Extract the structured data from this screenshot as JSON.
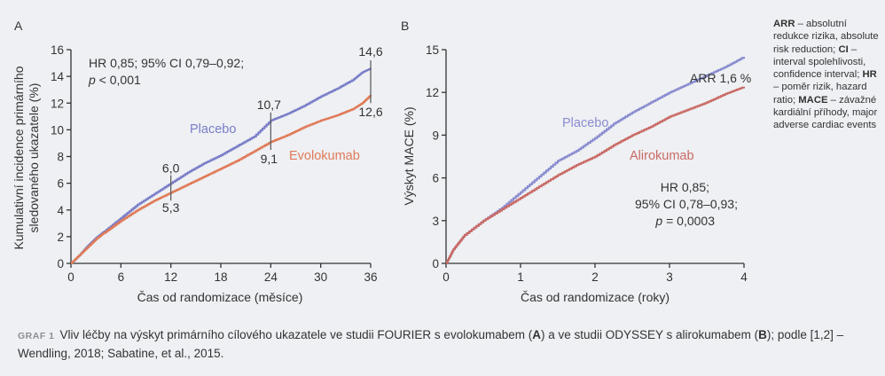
{
  "chart_data": [
    {
      "type": "line",
      "panel": "A",
      "ylabel_line1": "Kumulativní incidence primárního",
      "ylabel_line2": "sledovaného ukazatele (%)",
      "xlabel": "Čas od randomizace (měsíce)",
      "xlim": [
        0,
        36
      ],
      "ylim": [
        0,
        16
      ],
      "xticks": [
        0,
        6,
        12,
        18,
        24,
        30,
        36
      ],
      "yticks": [
        0,
        2,
        4,
        6,
        8,
        10,
        12,
        14,
        16
      ],
      "series": [
        {
          "name": "Placebo",
          "color": "#7a7ec8",
          "x": [
            0,
            1,
            2,
            3,
            4,
            6,
            8,
            10,
            12,
            14,
            16,
            18,
            20,
            22,
            24,
            26,
            28,
            30,
            32,
            34,
            35,
            36
          ],
          "y": [
            0,
            0.6,
            1.3,
            1.9,
            2.4,
            3.4,
            4.4,
            5.2,
            6.0,
            6.8,
            7.5,
            8.1,
            8.8,
            9.5,
            10.7,
            11.2,
            11.8,
            12.5,
            13.1,
            13.8,
            14.3,
            14.6
          ]
        },
        {
          "name": "Evolokumab",
          "color": "#e07a58",
          "x": [
            0,
            1,
            2,
            3,
            4,
            6,
            8,
            10,
            12,
            14,
            16,
            18,
            20,
            22,
            24,
            26,
            28,
            30,
            32,
            34,
            35,
            36
          ],
          "y": [
            0,
            0.6,
            1.2,
            1.8,
            2.3,
            3.2,
            4.0,
            4.7,
            5.3,
            5.9,
            6.5,
            7.1,
            7.7,
            8.4,
            9.1,
            9.6,
            10.2,
            10.7,
            11.1,
            11.6,
            12.0,
            12.6
          ]
        }
      ],
      "point_labels": [
        {
          "x": 12,
          "y": 6.0,
          "text": "6,0"
        },
        {
          "x": 12,
          "y": 5.3,
          "text": "5,3"
        },
        {
          "x": 24,
          "y": 10.7,
          "text": "10,7"
        },
        {
          "x": 24,
          "y": 9.1,
          "text": "9,1"
        },
        {
          "x": 36,
          "y": 14.6,
          "text": "14,6"
        },
        {
          "x": 36,
          "y": 12.6,
          "text": "12,6"
        }
      ],
      "annotation_line1": "HR 0,85; 95% CI 0,79–0,92;",
      "annotation_p_italic": "p",
      "annotation_line2_rest": " < 0,001"
    },
    {
      "type": "line",
      "panel": "B",
      "ylabel": "Výskyt MACE (%)",
      "xlabel": "Čas od randomizace (roky)",
      "xlim": [
        0,
        4
      ],
      "ylim": [
        0,
        15
      ],
      "xticks": [
        0,
        1,
        2,
        3,
        4
      ],
      "yticks": [
        0,
        3,
        6,
        9,
        12,
        15
      ],
      "series": [
        {
          "name": "Placebo",
          "color": "#8a8cd0",
          "x": [
            0,
            0.1,
            0.25,
            0.5,
            0.75,
            1.0,
            1.25,
            1.5,
            1.75,
            2.0,
            2.25,
            2.5,
            2.75,
            3.0,
            3.25,
            3.5,
            3.75,
            4.0
          ],
          "y": [
            0,
            1.0,
            2.0,
            3.0,
            3.9,
            5.0,
            6.1,
            7.2,
            7.9,
            8.8,
            9.8,
            10.6,
            11.3,
            12.0,
            12.6,
            13.2,
            13.8,
            14.5
          ]
        },
        {
          "name": "Alirokumab",
          "color": "#c96a66",
          "x": [
            0,
            0.1,
            0.25,
            0.5,
            0.75,
            1.0,
            1.25,
            1.5,
            1.75,
            2.0,
            2.25,
            2.5,
            2.75,
            3.0,
            3.25,
            3.5,
            3.75,
            4.0
          ],
          "y": [
            0,
            1.0,
            2.0,
            3.0,
            3.8,
            4.6,
            5.4,
            6.2,
            6.9,
            7.5,
            8.3,
            9.0,
            9.6,
            10.3,
            10.8,
            11.3,
            11.9,
            12.4
          ]
        }
      ],
      "arr_label": "ARR 1,6 %",
      "annotation_line1": "HR 0,85;",
      "annotation_line2": "95% CI 0,78–0,93;",
      "annotation_p_italic": "p",
      "annotation_line3_rest": " = 0,0003"
    }
  ],
  "glossary": [
    {
      "term": "ARR",
      "text": " – absolutní redukce rizika, absolute risk reduction; "
    },
    {
      "term": "CI",
      "text": " – interval spolehlivosti, confidence interval; "
    },
    {
      "term": "HR",
      "text": " – poměr rizik, hazard ratio; "
    },
    {
      "term": "MACE",
      "text": " – závažné kardiální příhody, major adverse cardiac events"
    }
  ],
  "caption": {
    "label": "GRAF 1",
    "part1": "Vliv léčby na výskyt primárního cílového ukazatele ve studii FOURIER s evolokumabem (",
    "bold_a": "A",
    "part2": ") a ve studii ODYSSEY s alirokumabem (",
    "bold_b": "B",
    "part3": "); podle [1,2] – Wendling, 2018; Sabatine, et al., 2015."
  }
}
